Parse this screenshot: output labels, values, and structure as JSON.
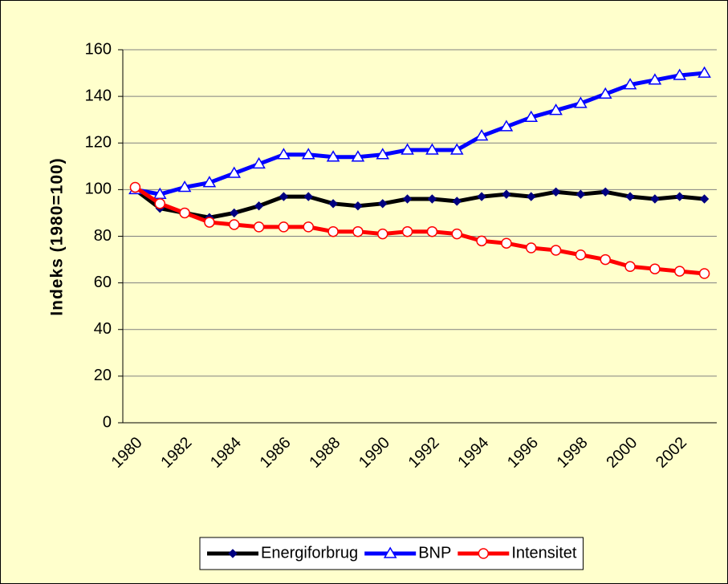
{
  "chart_data": {
    "type": "line",
    "y_label": "Indeks (1980=100)",
    "categories": [
      "1980",
      null,
      "1982",
      null,
      "1984",
      null,
      "1986",
      null,
      "1988",
      null,
      "1990",
      null,
      "1992",
      null,
      "1994",
      null,
      "1996",
      null,
      "1998",
      null,
      "2000",
      null,
      "2002",
      null
    ],
    "series": [
      {
        "name": "Energiforbrug",
        "color": "#000000",
        "marker": "diamond",
        "values": [
          100,
          92,
          90,
          88,
          90,
          93,
          97,
          97,
          94,
          93,
          94,
          96,
          96,
          95,
          97,
          98,
          97,
          99,
          98,
          99,
          97,
          96,
          97,
          96
        ]
      },
      {
        "name": "BNP",
        "color": "#0000ff",
        "marker": "triangle",
        "values": [
          100,
          98,
          101,
          103,
          107,
          111,
          115,
          115,
          114,
          114,
          115,
          117,
          117,
          117,
          123,
          127,
          131,
          134,
          137,
          141,
          145,
          147,
          149,
          150
        ]
      },
      {
        "name": "Intensitet",
        "color": "#ff0000",
        "marker": "circle",
        "values": [
          101,
          94,
          90,
          86,
          85,
          84,
          84,
          84,
          82,
          82,
          81,
          82,
          82,
          81,
          78,
          77,
          75,
          74,
          72,
          70,
          67,
          66,
          65,
          64
        ]
      }
    ],
    "ylim": [
      0,
      160
    ],
    "yticks": [
      0,
      20,
      40,
      60,
      80,
      100,
      120,
      140,
      160
    ],
    "grid": true,
    "legend": "bottom"
  }
}
